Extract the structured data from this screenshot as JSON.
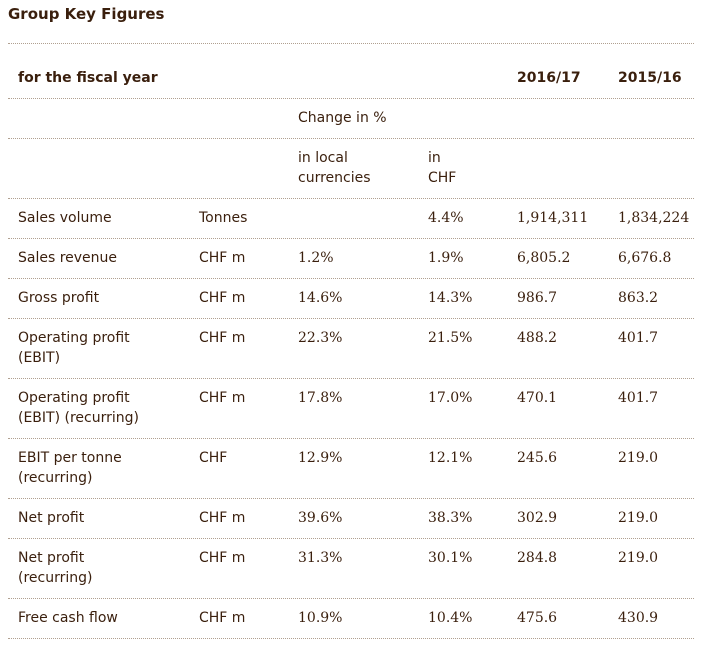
{
  "title": "Group Key Figures",
  "header": {
    "label": "for the fiscal year",
    "year_current": "2016/17",
    "year_previous": "2015/16",
    "change_label": "Change in %",
    "local_currencies_line1": "in local",
    "local_currencies_line2": "currencies",
    "chf_line1": "in",
    "chf_line2": "CHF"
  },
  "rows": [
    {
      "label1": "Sales volume",
      "label2": "",
      "unit": "Tonnes",
      "change_local": "",
      "change_chf": "4.4%",
      "current": "1,914,311",
      "previous": "1,834,224"
    },
    {
      "label1": "Sales revenue",
      "label2": "",
      "unit": "CHF m",
      "change_local": "1.2%",
      "change_chf": "1.9%",
      "current": "6,805.2",
      "previous": "6,676.8"
    },
    {
      "label1": "Gross profit",
      "label2": "",
      "unit": "CHF m",
      "change_local": "14.6%",
      "change_chf": "14.3%",
      "current": "986.7",
      "previous": "863.2"
    },
    {
      "label1": "Operating profit",
      "label2": "(EBIT)",
      "unit": "CHF m",
      "change_local": "22.3%",
      "change_chf": "21.5%",
      "current": "488.2",
      "previous": "401.7"
    },
    {
      "label1": "Operating profit",
      "label2": "(EBIT) (recurring)",
      "unit": "CHF m",
      "change_local": "17.8%",
      "change_chf": "17.0%",
      "current": "470.1",
      "previous": "401.7"
    },
    {
      "label1": "EBIT per tonne",
      "label2": "(recurring)",
      "unit": "CHF",
      "change_local": "12.9%",
      "change_chf": "12.1%",
      "current": "245.6",
      "previous": "219.0"
    },
    {
      "label1": "Net profit",
      "label2": "",
      "unit": "CHF m",
      "change_local": "39.6%",
      "change_chf": "38.3%",
      "current": "302.9",
      "previous": "219.0"
    },
    {
      "label1": "Net profit",
      "label2": "(recurring)",
      "unit": "CHF m",
      "change_local": "31.3%",
      "change_chf": "30.1%",
      "current": "284.8",
      "previous": "219.0"
    },
    {
      "label1": "Free cash flow",
      "label2": "",
      "unit": "CHF m",
      "change_local": "10.9%",
      "change_chf": "10.4%",
      "current": "475.6",
      "previous": "430.9"
    }
  ]
}
